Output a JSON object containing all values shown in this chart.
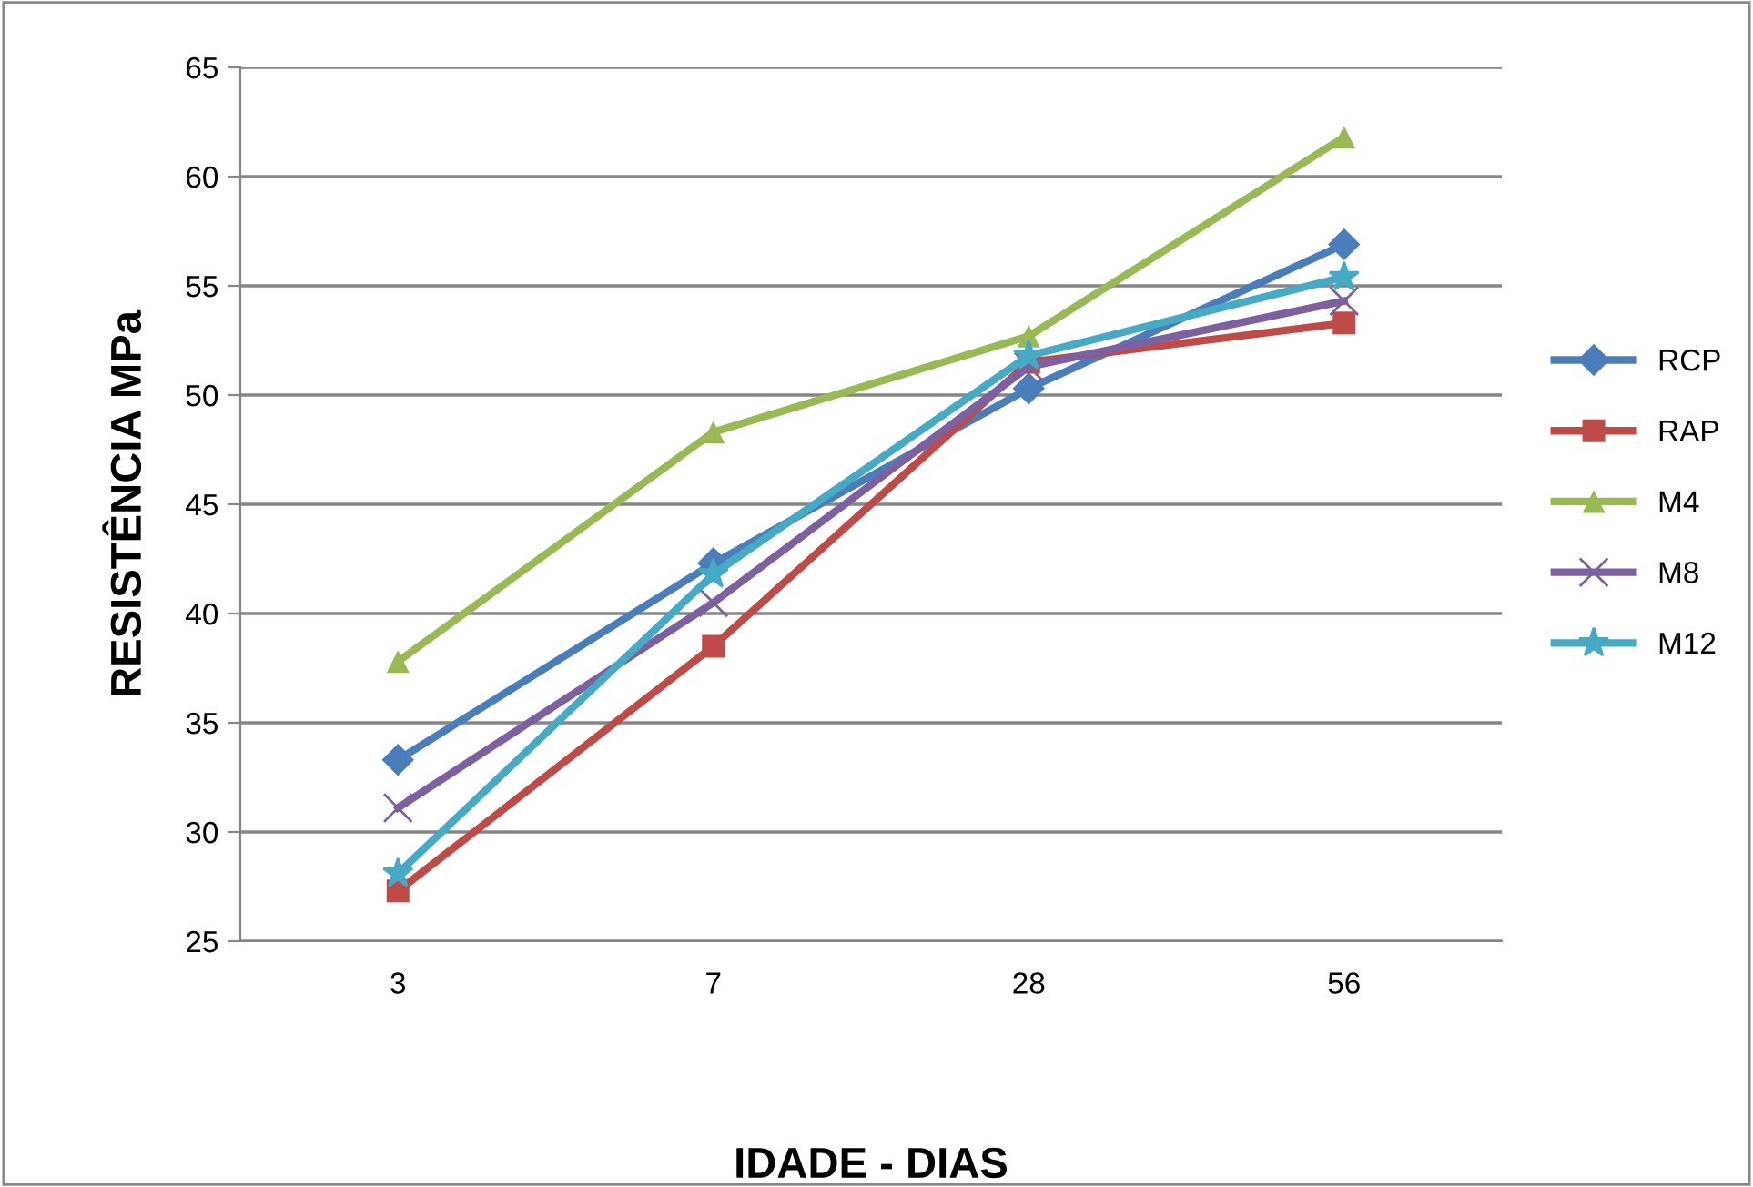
{
  "chart_data": {
    "type": "line",
    "xlabel": "IDADE - DIAS",
    "ylabel": "RESISTÊNCIA MPa",
    "categories": [
      "3",
      "7",
      "28",
      "56"
    ],
    "ylim": [
      25,
      65
    ],
    "yticks": [
      25,
      30,
      35,
      40,
      45,
      50,
      55,
      60,
      65
    ],
    "grid": "y",
    "legend": "right",
    "series": [
      {
        "name": "RCP",
        "color": "#4a7ebb",
        "marker": "diamond",
        "values": [
          33.3,
          42.3,
          50.3,
          56.9
        ]
      },
      {
        "name": "RAP",
        "color": "#be4b48",
        "marker": "square",
        "values": [
          27.3,
          38.5,
          51.5,
          53.3
        ]
      },
      {
        "name": "M4",
        "color": "#98b954",
        "marker": "triangle",
        "values": [
          37.8,
          48.3,
          52.7,
          61.8
        ]
      },
      {
        "name": "M8",
        "color": "#7d60a0",
        "marker": "cross",
        "values": [
          31.1,
          40.5,
          51.3,
          54.3
        ]
      },
      {
        "name": "M12",
        "color": "#46aac5",
        "marker": "star",
        "values": [
          28.1,
          41.8,
          51.8,
          55.4
        ]
      }
    ]
  }
}
